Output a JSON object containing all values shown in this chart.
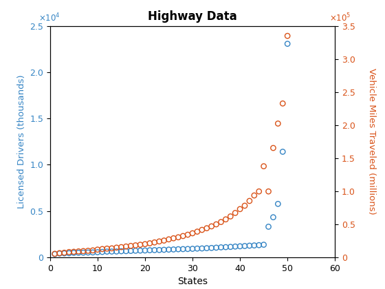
{
  "title": "Highway Data",
  "xlabel": "States",
  "ylabel_left": "Licensed Drivers (thousands)",
  "ylabel_right": "Vehicle Miles Traveled (millions)",
  "left_color": "#3484C4",
  "right_color": "#D95319",
  "xlim": [
    0,
    60
  ],
  "ylim_left": [
    0,
    25000
  ],
  "ylim_right": [
    0,
    350000
  ],
  "licensed_drivers": [
    341,
    403,
    420,
    432,
    470,
    480,
    491,
    507,
    518,
    540,
    572,
    607,
    615,
    621,
    648,
    660,
    680,
    703,
    716,
    730,
    754,
    768,
    780,
    803,
    822,
    840,
    864,
    878,
    891,
    910,
    935,
    950,
    978,
    1001,
    1032,
    1068,
    1092,
    1117,
    1154,
    1181,
    1210,
    1247,
    1273,
    1305,
    1350,
    3298,
    4321,
    5765,
    11404,
    23077
  ],
  "vehicle_miles": [
    5174,
    6174,
    6814,
    7855,
    8234,
    8817,
    9271,
    9732,
    10333,
    11529,
    12387,
    13029,
    13419,
    14534,
    15284,
    16209,
    17148,
    17958,
    18876,
    19800,
    21081,
    22403,
    23888,
    25218,
    27030,
    28665,
    30168,
    32093,
    34057,
    36249,
    38726,
    41400,
    43879,
    46714,
    49773,
    53280,
    57286,
    61757,
    67000,
    72834,
    77972,
    85207,
    93496,
    99574,
    137690,
    99574,
    165367,
    202337,
    232736,
    335056
  ]
}
